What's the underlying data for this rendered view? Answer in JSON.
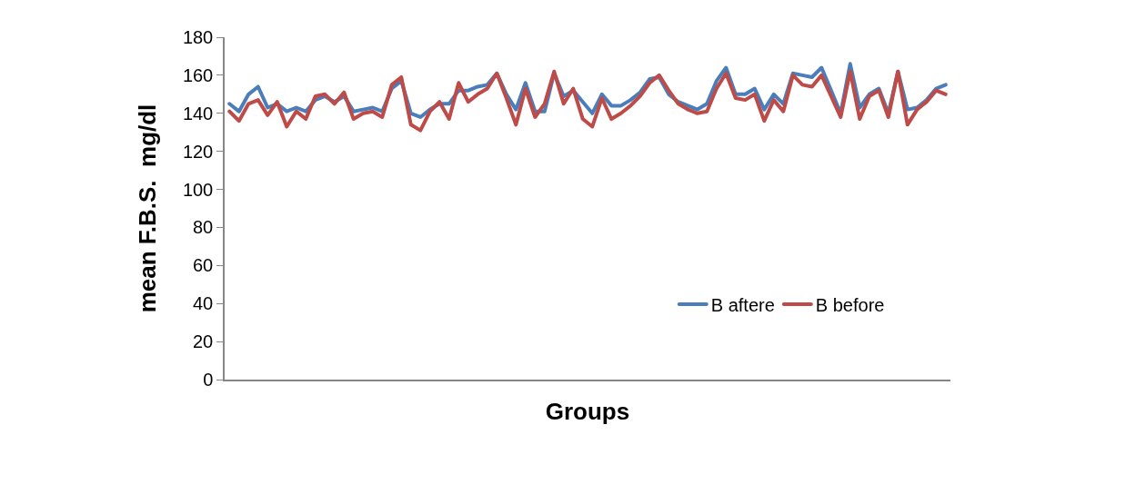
{
  "chart_data": {
    "type": "line",
    "xlabel": "Groups",
    "ylabel": "mean F.B.S.  mg/dl",
    "categories": [
      null,
      null,
      null,
      null,
      null,
      null,
      null,
      null,
      null,
      null,
      null,
      null,
      null,
      null,
      null,
      null,
      null,
      null,
      null,
      null,
      null,
      null,
      null,
      null,
      null,
      null,
      null,
      null,
      null,
      null,
      null,
      null,
      null,
      null,
      null,
      null,
      null,
      null,
      null,
      null,
      null,
      null,
      null,
      null,
      null,
      null,
      null,
      null,
      null,
      null,
      null,
      null,
      null,
      null,
      null,
      null,
      null,
      null,
      null,
      null,
      null,
      null,
      null,
      null,
      null,
      null,
      null,
      null,
      null,
      null,
      null,
      null,
      null,
      null,
      null,
      null
    ],
    "series": [
      {
        "name": "B aftere",
        "color": "#4a7ebb",
        "values": [
          145,
          141,
          150,
          154,
          143,
          145,
          141,
          143,
          141,
          147,
          149,
          146,
          149,
          141,
          142,
          143,
          141,
          153,
          157,
          140,
          138,
          142,
          145,
          145,
          152,
          152,
          154,
          155,
          161,
          150,
          142,
          156,
          141,
          141,
          161,
          149,
          152,
          146,
          140,
          150,
          144,
          144,
          147,
          151,
          158,
          159,
          150,
          146,
          144,
          142,
          145,
          157,
          164,
          150,
          150,
          153,
          142,
          150,
          145,
          161,
          160,
          159,
          164,
          152,
          140,
          166,
          143,
          150,
          153,
          140,
          162,
          142,
          143,
          147,
          153,
          155
        ]
      },
      {
        "name": "B before",
        "color": "#be4b48",
        "values": [
          141,
          136,
          145,
          147,
          139,
          146,
          133,
          141,
          137,
          149,
          150,
          145,
          151,
          137,
          140,
          141,
          138,
          155,
          159,
          134,
          131,
          141,
          146,
          137,
          156,
          146,
          150,
          153,
          161,
          148,
          134,
          153,
          138,
          145,
          162,
          145,
          153,
          137,
          133,
          148,
          137,
          140,
          144,
          149,
          156,
          160,
          152,
          145,
          142,
          140,
          141,
          153,
          161,
          148,
          147,
          150,
          136,
          147,
          141,
          160,
          155,
          154,
          160,
          149,
          138,
          162,
          137,
          149,
          152,
          138,
          162,
          134,
          142,
          146,
          152,
          150
        ]
      }
    ],
    "ylim": [
      0,
      180
    ],
    "yticks": [
      0,
      20,
      40,
      60,
      80,
      100,
      120,
      140,
      160,
      180
    ],
    "grid": false,
    "legend": "right",
    "marker": "none",
    "line_style": "solid",
    "tick_labels": "y"
  }
}
